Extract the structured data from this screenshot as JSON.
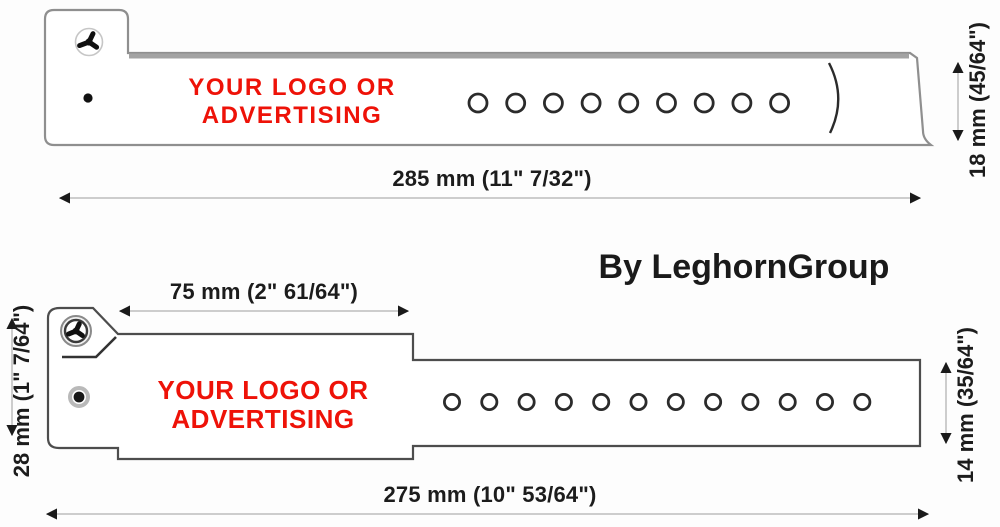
{
  "credit": "By LeghornGroup",
  "colors": {
    "logo_red": "#ee1208",
    "outline_top_band": "#8f8f8f",
    "outline_bottom_band": "#4d4d4d",
    "dimension_text": "#1c1c1c"
  },
  "wristband_large": {
    "logo_line1": "YOUR LOGO OR",
    "logo_line2": "ADVERTISING",
    "holes_count": 9,
    "length_label": "285 mm (11\" 7/32\")",
    "width_label": "18 mm (45/64\")"
  },
  "wristband_small": {
    "logo_line1": "YOUR LOGO OR",
    "logo_line2": "ADVERTISING",
    "holes_count": 12,
    "length_label": "275 mm (10\" 53/64\")",
    "tab_length_label": "75 mm (2\" 61/64\")",
    "width_label_left": "28 mm (1\" 7/64\")",
    "width_label_right": "14 mm (35/64\")"
  }
}
